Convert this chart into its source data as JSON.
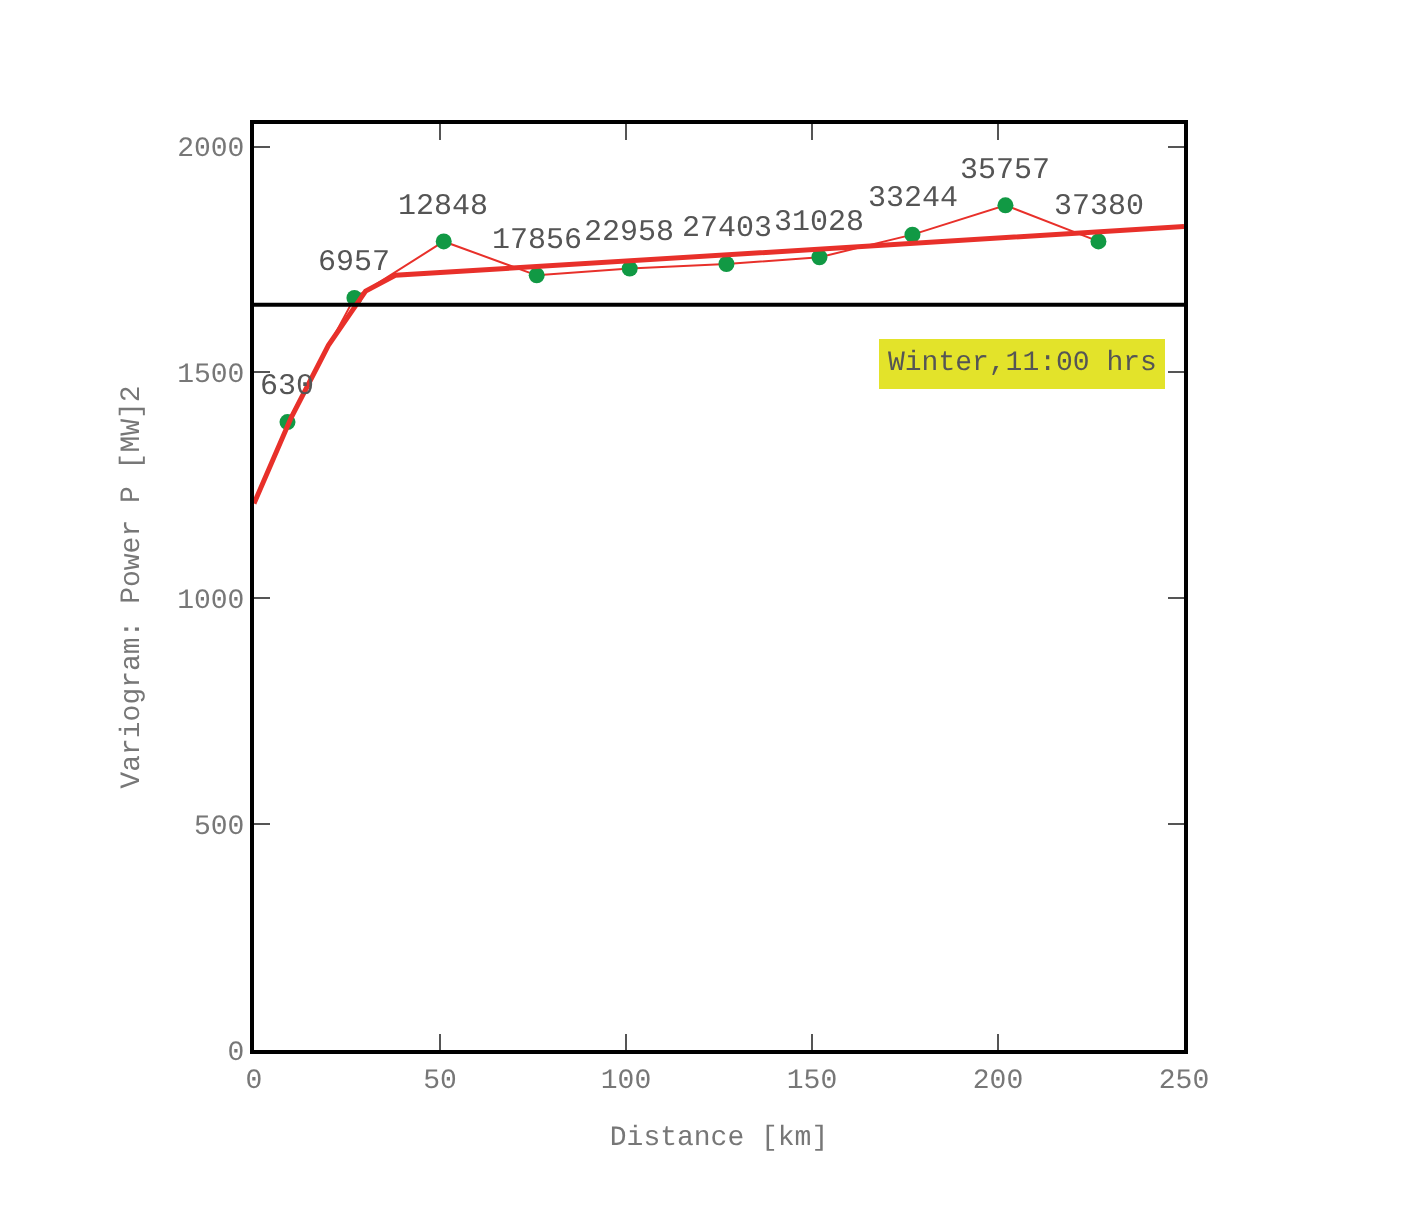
{
  "chart_data": {
    "type": "line",
    "xlabel": "Distance [km]",
    "ylabel": "Variogram: Power P [MW]2",
    "xlim": [
      0,
      250
    ],
    "xticks": [
      0,
      50,
      100,
      150,
      200,
      250
    ],
    "ylim": [
      0,
      2050
    ],
    "yticks": [
      0,
      500,
      1000,
      1500,
      2000
    ],
    "series": [
      {
        "color": "#e8302a",
        "marker": "circle",
        "colors": [
          "#119944",
          "#119944",
          "#119944",
          "#119944",
          "#119944",
          "#119944",
          "#119944",
          "#119944",
          "#119944",
          "#119944"
        ],
        "x": [
          9,
          27,
          51,
          76,
          101,
          127,
          152,
          177,
          202,
          227
        ],
        "values": [
          1390,
          1665,
          1790,
          1715,
          1730,
          1740,
          1755,
          1805,
          1870,
          1790
        ]
      },
      {
        "color": "#e8302a",
        "marker": "none",
        "x": [
          0,
          10,
          20,
          30,
          38,
          250
        ],
        "values": [
          1210,
          1400,
          1560,
          1680,
          1715,
          1823
        ]
      }
    ],
    "ref_lines": [
      {
        "axis": "y",
        "value": 1650,
        "color": "#000000"
      }
    ],
    "annotations": [
      {
        "text": "630",
        "x": 9,
        "y": 1390
      },
      {
        "text": "6957",
        "x": 27,
        "y": 1665
      },
      {
        "text": "12848",
        "x": 51,
        "y": 1790
      },
      {
        "text": "17856",
        "x": 76,
        "y": 1715
      },
      {
        "text": "22958",
        "x": 101,
        "y": 1730
      },
      {
        "text": "27403",
        "x": 127,
        "y": 1740
      },
      {
        "text": "31028",
        "x": 152,
        "y": 1755
      },
      {
        "text": "33244",
        "x": 177,
        "y": 1805
      },
      {
        "text": "35757",
        "x": 202,
        "y": 1870
      },
      {
        "text": "37380",
        "x": 227,
        "y": 1790
      },
      "Winter,11:00 hrs"
    ]
  }
}
